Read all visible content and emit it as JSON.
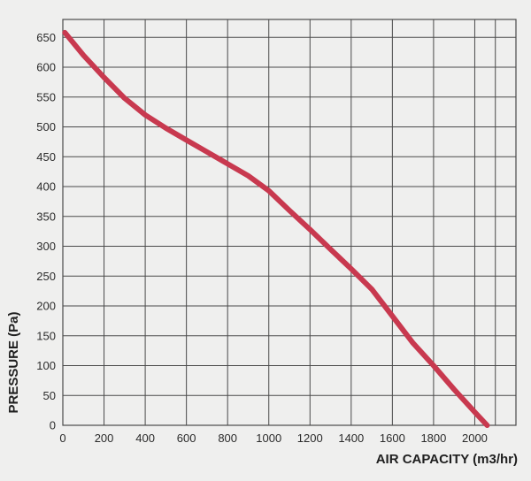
{
  "chart_data": {
    "type": "line",
    "xlabel": "AIR CAPACITY (m3/hr)",
    "ylabel": "PRESSURE (Pa)",
    "xlim": [
      0,
      2200
    ],
    "ylim": [
      0,
      680
    ],
    "x_ticks": [
      0,
      200,
      400,
      600,
      800,
      1000,
      1200,
      1400,
      1600,
      1800,
      2000
    ],
    "x_tick_labels": [
      "0",
      "200",
      "400",
      "600",
      "800",
      "1000",
      "1200",
      "1400",
      "1600",
      "1800",
      "2000"
    ],
    "y_ticks": [
      0,
      50,
      100,
      150,
      200,
      250,
      300,
      350,
      400,
      450,
      500,
      550,
      600,
      650
    ],
    "y_tick_labels": [
      "0",
      "50",
      "100",
      "150",
      "200",
      "250",
      "300",
      "350",
      "400",
      "450",
      "500",
      "550",
      "600",
      "650"
    ],
    "grid": true,
    "line_color": "#c8394f",
    "grid_color": "#4a4a4a",
    "series": [
      {
        "x": [
          10,
          100,
          200,
          300,
          400,
          500,
          600,
          700,
          800,
          900,
          1000,
          1100,
          1200,
          1300,
          1400,
          1500,
          1600,
          1700,
          1800,
          1900,
          2000,
          2060
        ],
        "y": [
          658,
          620,
          583,
          548,
          520,
          498,
          478,
          458,
          438,
          418,
          393,
          360,
          328,
          295,
          262,
          228,
          183,
          138,
          100,
          60,
          22,
          0
        ]
      }
    ]
  }
}
